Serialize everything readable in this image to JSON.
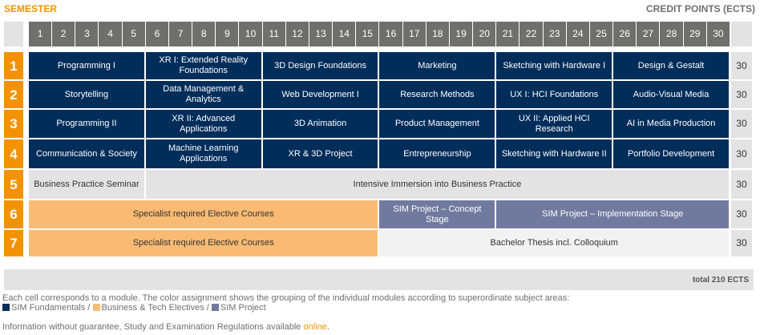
{
  "header": {
    "semester_label": "SEMESTER",
    "credit_label": "CREDIT POINTS (ECTS)"
  },
  "colors": {
    "sim_fundamentals": "#002d5a",
    "business_tech_electives": "#f9bb73",
    "sim_project": "#717a9e",
    "accent": "#f39200"
  },
  "columns": [
    "1",
    "2",
    "3",
    "4",
    "5",
    "6",
    "7",
    "8",
    "9",
    "10",
    "11",
    "12",
    "13",
    "14",
    "15",
    "16",
    "17",
    "18",
    "19",
    "20",
    "21",
    "22",
    "23",
    "24",
    "25",
    "26",
    "27",
    "28",
    "29",
    "30"
  ],
  "semesters": [
    {
      "number": "1",
      "credits": "30",
      "modules": [
        {
          "label": "Programming I",
          "span": 5,
          "group": "navy"
        },
        {
          "label": "XR I: Extended Reality Foundations",
          "span": 5,
          "group": "navy"
        },
        {
          "label": "3D Design Foundations",
          "span": 5,
          "group": "navy"
        },
        {
          "label": "Marketing",
          "span": 5,
          "group": "navy"
        },
        {
          "label": "Sketching with Hardware I",
          "span": 5,
          "group": "navy"
        },
        {
          "label": "Design & Gestalt",
          "span": 5,
          "group": "navy"
        }
      ]
    },
    {
      "number": "2",
      "credits": "30",
      "modules": [
        {
          "label": "Storytelling",
          "span": 5,
          "group": "navy"
        },
        {
          "label": "Data Management & Analytics",
          "span": 5,
          "group": "navy"
        },
        {
          "label": "Web Development I",
          "span": 5,
          "group": "navy"
        },
        {
          "label": "Research Methods",
          "span": 5,
          "group": "navy"
        },
        {
          "label": "UX I: HCI Foundations",
          "span": 5,
          "group": "navy"
        },
        {
          "label": "Audio-Visual Media",
          "span": 5,
          "group": "navy"
        }
      ]
    },
    {
      "number": "3",
      "credits": "30",
      "modules": [
        {
          "label": "Programming II",
          "span": 5,
          "group": "navy"
        },
        {
          "label": "XR II: Advanced Applications",
          "span": 5,
          "group": "navy"
        },
        {
          "label": "3D Animation",
          "span": 5,
          "group": "navy"
        },
        {
          "label": "Product Management",
          "span": 5,
          "group": "navy"
        },
        {
          "label": "UX II: Applied HCI Research",
          "span": 5,
          "group": "navy"
        },
        {
          "label": "AI in Media Production",
          "span": 5,
          "group": "navy"
        }
      ]
    },
    {
      "number": "4",
      "credits": "30",
      "modules": [
        {
          "label": "Communication & Society",
          "span": 5,
          "group": "navy"
        },
        {
          "label": "Machine Learning Applications",
          "span": 5,
          "group": "navy"
        },
        {
          "label": "XR & 3D Project",
          "span": 5,
          "group": "navy"
        },
        {
          "label": "Entrepreneurship",
          "span": 5,
          "group": "navy"
        },
        {
          "label": "Sketching with Hardware II",
          "span": 5,
          "group": "navy"
        },
        {
          "label": "Portfolio Development",
          "span": 5,
          "group": "navy"
        }
      ]
    },
    {
      "number": "5",
      "credits": "30",
      "modules": [
        {
          "label": "Business Practice Seminar",
          "span": 5,
          "group": "lgray"
        },
        {
          "label": "Intensive Immersion into Business Practice",
          "span": 25,
          "group": "lgray"
        }
      ]
    },
    {
      "number": "6",
      "credits": "30",
      "modules": [
        {
          "label": "Specialist required Elective Courses",
          "span": 15,
          "group": "orange"
        },
        {
          "label": "SIM Project – Concept Stage",
          "span": 5,
          "group": "proj"
        },
        {
          "label": "SIM Project – Implementation Stage",
          "span": 10,
          "group": "proj"
        }
      ]
    },
    {
      "number": "7",
      "credits": "30",
      "modules": [
        {
          "label": "Specialist required Elective Courses",
          "span": 15,
          "group": "orange"
        },
        {
          "label": "Bachelor Thesis incl. Colloquium",
          "span": 15,
          "group": "pale"
        }
      ]
    }
  ],
  "total": "total 210 ECTS",
  "footer": {
    "description": "Each cell corresponds to a module. The color assignment shows the grouping of the individual modules according to superordinate subject areas:",
    "legend": [
      {
        "label": "SIM Fundamentals /",
        "color": "#002d5a"
      },
      {
        "label": "Business & Tech Electives /",
        "color": "#f9bb73"
      },
      {
        "label": "SIM Project",
        "color": "#717a9e"
      }
    ],
    "disclaimer": "Information without guarantee, Study and Examination Regulations available ",
    "link": "online",
    "period": "."
  }
}
